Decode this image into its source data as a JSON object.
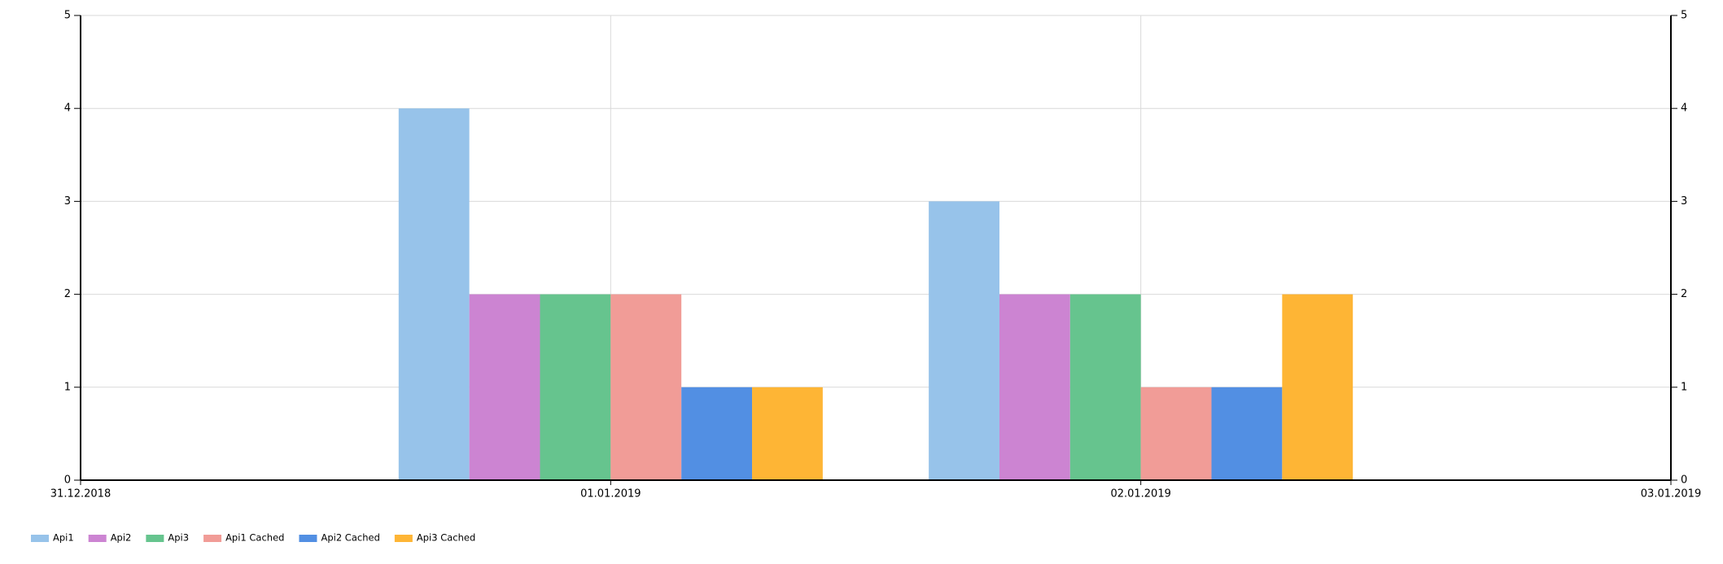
{
  "chart_data": {
    "type": "bar",
    "categories": [
      "31.12.2018",
      "01.01.2019",
      "02.01.2019",
      "03.01.2019"
    ],
    "series": [
      {
        "name": "Api1",
        "color": "#97c3ea",
        "values": [
          null,
          4,
          3,
          null
        ]
      },
      {
        "name": "Api2",
        "color": "#cc84d2",
        "values": [
          null,
          2,
          2,
          null
        ]
      },
      {
        "name": "Api3",
        "color": "#66c48e",
        "values": [
          null,
          2,
          2,
          null
        ]
      },
      {
        "name": "Api1 Cached",
        "color": "#f19c97",
        "values": [
          null,
          2,
          1,
          null
        ]
      },
      {
        "name": "Api2 Cached",
        "color": "#528fe3",
        "values": [
          null,
          1,
          1,
          null
        ]
      },
      {
        "name": "Api3 Cached",
        "color": "#feb535",
        "values": [
          null,
          1,
          2,
          null
        ]
      }
    ],
    "ylim": [
      0,
      5
    ],
    "yticks": [
      0,
      1,
      2,
      3,
      4,
      5
    ],
    "grid": true,
    "legend": "bottom-left"
  }
}
